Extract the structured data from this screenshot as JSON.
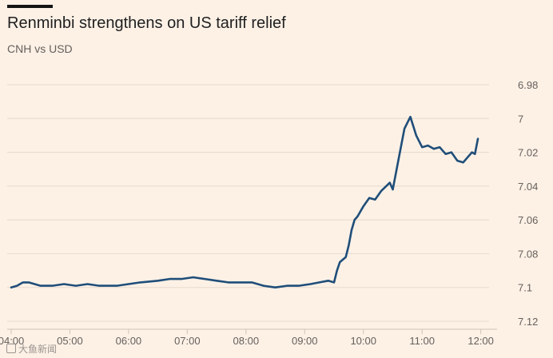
{
  "chart_data": {
    "type": "line",
    "title": "Renminbi strengthens on US tariff relief",
    "subtitle": "CNH vs USD",
    "xlabel": "",
    "ylabel": "",
    "y_axis_position": "right",
    "y_inverted": true,
    "ylim": [
      6.98,
      7.12
    ],
    "y_ticks": [
      6.98,
      7,
      7.02,
      7.04,
      7.06,
      7.08,
      7.1,
      7.12
    ],
    "y_tick_labels": [
      "6.98",
      "7",
      "7.02",
      "7.04",
      "7.06",
      "7.08",
      "7.1",
      "7.12"
    ],
    "x_unit": "hours since 04:00",
    "xlim": [
      0,
      8.25
    ],
    "x_ticks": [
      0,
      1,
      2,
      3,
      4,
      5,
      6,
      7,
      8
    ],
    "x_tick_labels": [
      "04:00",
      "05:00",
      "06:00",
      "07:00",
      "08:00",
      "09:00",
      "10:00",
      "11:00",
      "12:00"
    ],
    "grid": "horizontal",
    "colors": {
      "background": "#fdf1e6",
      "line": "#1f4e79",
      "grid": "#e6d9ce",
      "axis_text": "#66605c"
    },
    "series": [
      {
        "name": "CNH vs USD",
        "x": [
          0,
          0.1,
          0.2,
          0.3,
          0.5,
          0.7,
          0.9,
          1.1,
          1.3,
          1.5,
          1.8,
          2.0,
          2.2,
          2.5,
          2.7,
          2.9,
          3.1,
          3.3,
          3.5,
          3.7,
          3.9,
          4.1,
          4.3,
          4.5,
          4.7,
          4.9,
          5.1,
          5.25,
          5.4,
          5.5,
          5.55,
          5.6,
          5.7,
          5.75,
          5.8,
          5.85,
          5.9,
          6.0,
          6.1,
          6.2,
          6.3,
          6.45,
          6.5,
          6.6,
          6.7,
          6.8,
          6.9,
          7.0,
          7.1,
          7.2,
          7.3,
          7.4,
          7.5,
          7.6,
          7.7,
          7.8,
          7.85,
          7.9,
          7.95
        ],
        "values": [
          7.1,
          7.099,
          7.097,
          7.097,
          7.099,
          7.099,
          7.098,
          7.099,
          7.098,
          7.099,
          7.099,
          7.098,
          7.097,
          7.096,
          7.095,
          7.095,
          7.094,
          7.095,
          7.096,
          7.097,
          7.097,
          7.097,
          7.099,
          7.1,
          7.099,
          7.099,
          7.098,
          7.097,
          7.096,
          7.097,
          7.09,
          7.085,
          7.082,
          7.075,
          7.066,
          7.06,
          7.058,
          7.052,
          7.047,
          7.048,
          7.043,
          7.038,
          7.042,
          7.024,
          7.006,
          6.999,
          7.01,
          7.017,
          7.016,
          7.018,
          7.017,
          7.021,
          7.02,
          7.025,
          7.026,
          7.022,
          7.02,
          7.021,
          7.012
        ]
      }
    ]
  },
  "watermark": {
    "text": "大鱼新闻",
    "icon": "logo-icon"
  }
}
